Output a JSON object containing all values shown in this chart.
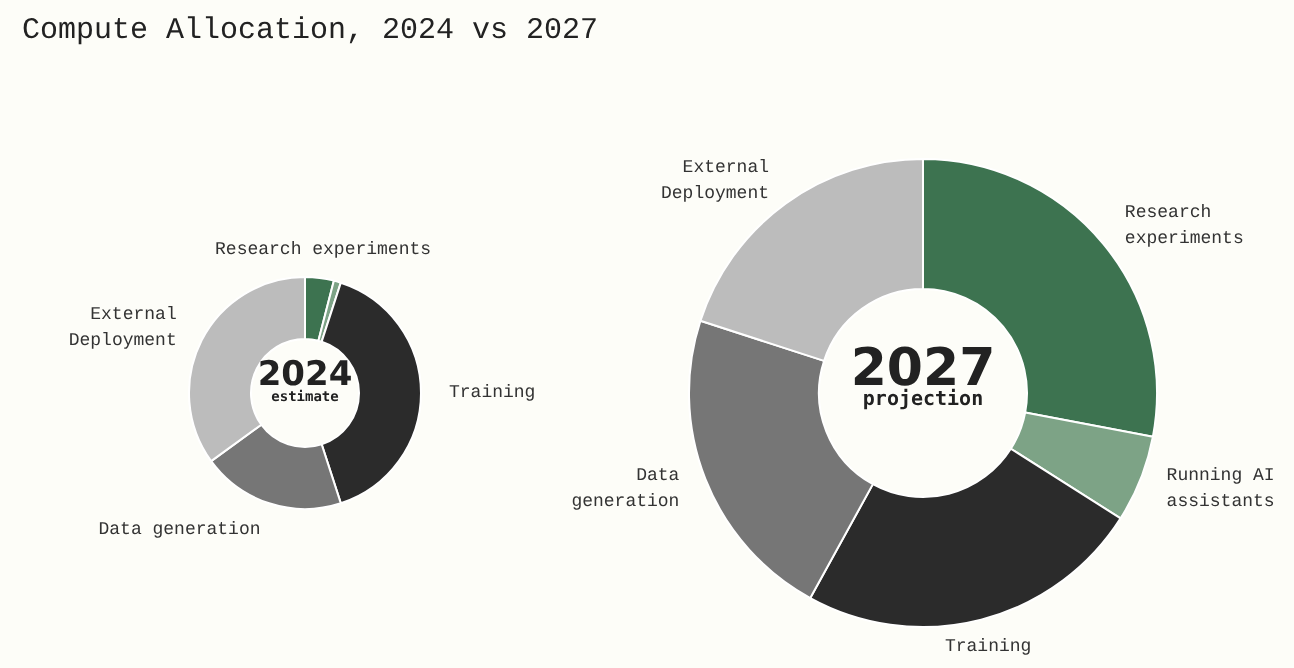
{
  "chart_data": [
    {
      "type": "donut",
      "title": "Compute Allocation, 2024 vs 2027",
      "categories": [
        "Research experiments",
        null,
        "Training",
        "Data generation",
        "External\nDeployment"
      ],
      "values": [
        4,
        1,
        40,
        20,
        35
      ],
      "colors": [
        "#3d7350",
        "#7da386",
        "#2b2b2b",
        "#767676",
        "#bcbcbc"
      ],
      "annotations": [
        "2024",
        "estimate"
      ]
    },
    {
      "type": "donut",
      "categories": [
        "Research\nexperiments",
        "Running AI\nassistants",
        "Training",
        "Data\ngeneration",
        "External\nDeployment"
      ],
      "values": [
        28,
        6,
        24,
        22,
        20
      ],
      "colors": [
        "#3d7350",
        "#7da386",
        "#2b2b2b",
        "#767676",
        "#bcbcbc"
      ],
      "annotations": [
        "2027",
        "projection"
      ]
    }
  ]
}
